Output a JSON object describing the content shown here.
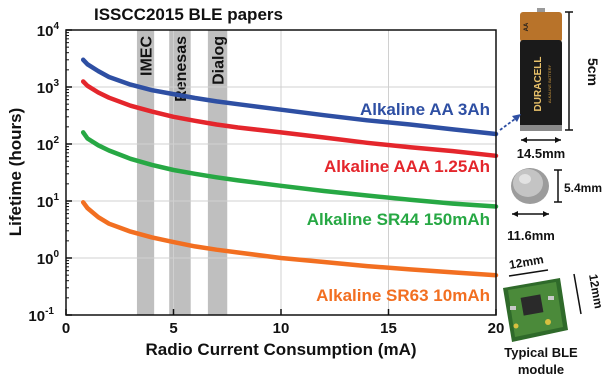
{
  "chart_data": {
    "type": "line",
    "title": "ISSCC2015 BLE papers",
    "xlabel": "Radio Current Consumption (mA)",
    "ylabel": "Lifetime (hours)",
    "xlim": [
      0,
      20
    ],
    "ylim_exp": [
      -1,
      4
    ],
    "y_scale": "log",
    "x_ticks": [
      "0",
      "5",
      "10",
      "15",
      "20"
    ],
    "y_tick_labels": [
      {
        "base": "10",
        "exp": "-1"
      },
      {
        "base": "10",
        "exp": "0"
      },
      {
        "base": "10",
        "exp": "1"
      },
      {
        "base": "10",
        "exp": "2"
      },
      {
        "base": "10",
        "exp": "3"
      },
      {
        "base": "10",
        "exp": "4"
      }
    ],
    "grid": true,
    "x": [
      0.8,
      1,
      1.5,
      2,
      3,
      4,
      5,
      6,
      7,
      8,
      10,
      12,
      14,
      16,
      18,
      20
    ],
    "series": [
      {
        "name": "Alkaline AA 3Ah",
        "color": "#2e4fa3",
        "values": [
          3000,
          2500,
          1900,
          1500,
          1100,
          880,
          750,
          640,
          560,
          500,
          400,
          320,
          260,
          220,
          180,
          150
        ]
      },
      {
        "name": "Alkaline AAA 1.25Ah",
        "color": "#e4262c",
        "values": [
          1250,
          1050,
          800,
          650,
          470,
          370,
          300,
          255,
          220,
          195,
          160,
          130,
          105,
          88,
          75,
          62
        ]
      },
      {
        "name": "Alkaline SR44 150mAh",
        "color": "#27a844",
        "values": [
          160,
          125,
          95,
          77,
          55,
          43,
          35,
          30,
          26,
          23,
          18.5,
          15,
          12.5,
          10.5,
          9,
          8
        ]
      },
      {
        "name": "Alkaline SR63 10mAh",
        "color": "#f26f21",
        "values": [
          9.5,
          7.5,
          5.2,
          4.0,
          2.9,
          2.3,
          1.9,
          1.6,
          1.4,
          1.25,
          1.0,
          0.85,
          0.72,
          0.63,
          0.56,
          0.5
        ]
      }
    ],
    "bands": [
      {
        "label": "IMEC",
        "x_range": [
          3.3,
          4.1
        ]
      },
      {
        "label": "Renesas",
        "x_range": [
          4.8,
          5.8
        ]
      },
      {
        "label": "Dialog",
        "x_range": [
          6.6,
          7.5
        ]
      }
    ]
  },
  "annotations": {
    "aa_height": "5cm",
    "aa_width": "14.5mm",
    "coin_height": "5.4mm",
    "coin_width": "11.6mm",
    "module_w": "12mm",
    "module_h": "12mm",
    "module_caption_1": "Typical BLE",
    "module_caption_2": "module"
  },
  "photos": {
    "battery_brand": "DURACELL",
    "battery_sub": "ALKALINE BATTERY",
    "battery_type": "AA"
  },
  "colors": {
    "band": "#b4b4b4",
    "grid": "#d0d0d0",
    "arrow": "#2e4fa3"
  }
}
